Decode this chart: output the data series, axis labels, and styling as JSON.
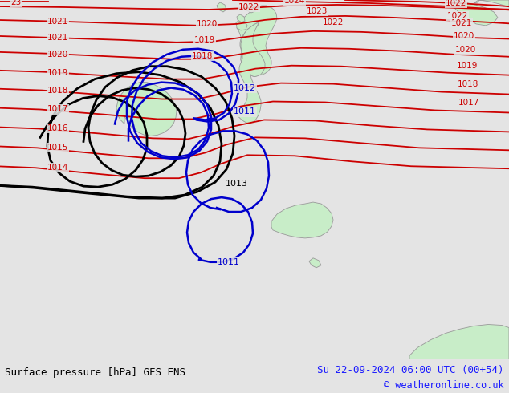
{
  "title_left": "Surface pressure [hPa] GFS ENS",
  "title_right": "Su 22-09-2024 06:00 UTC (00+54)",
  "copyright": "© weatheronline.co.uk",
  "background_color": "#e4e4e4",
  "land_color": "#c8edc8",
  "border_color": "#999999",
  "red": "#cc0000",
  "black": "#000000",
  "blue": "#0000cc",
  "lw_red": 1.3,
  "lw_black": 2.0,
  "lw_blue": 1.8,
  "label_fontsize": 7.5,
  "footer_fontsize": 9
}
